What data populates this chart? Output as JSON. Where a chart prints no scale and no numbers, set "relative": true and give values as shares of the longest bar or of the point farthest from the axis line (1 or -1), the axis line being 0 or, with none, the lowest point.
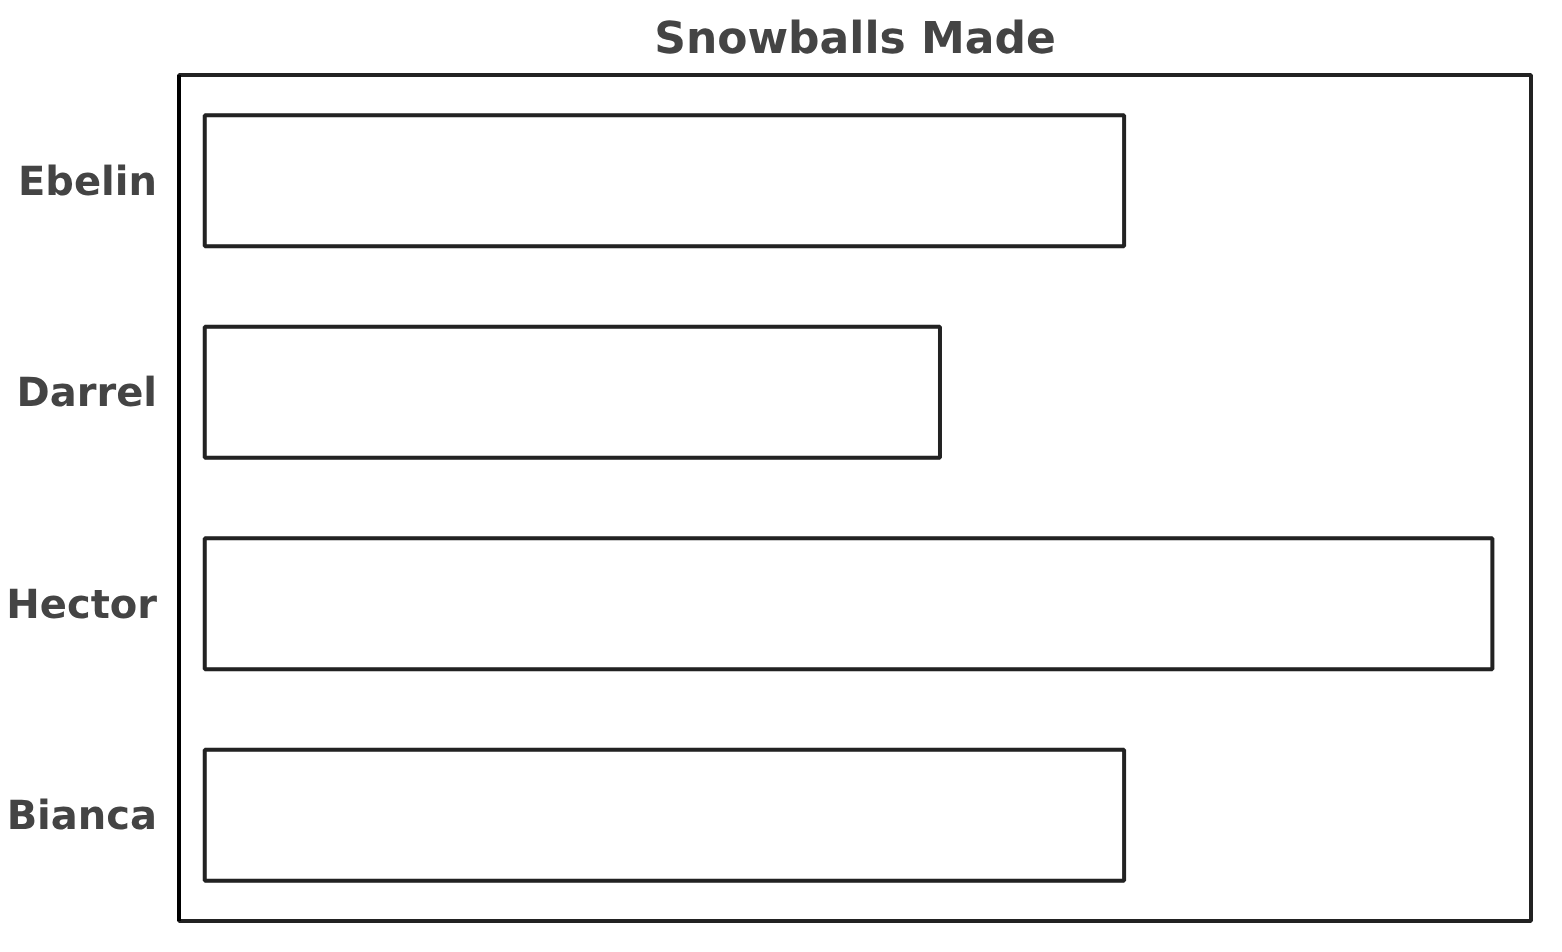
{
  "chart_data": {
    "type": "bar",
    "orientation": "horizontal",
    "relative": true,
    "title": "Snowballs Made",
    "categories": [
      "Ebelin",
      "Darrel",
      "Hector",
      "Bianca"
    ],
    "values": [
      0.714,
      0.571,
      1,
      0.714
    ],
    "color": "#ffffff"
  }
}
